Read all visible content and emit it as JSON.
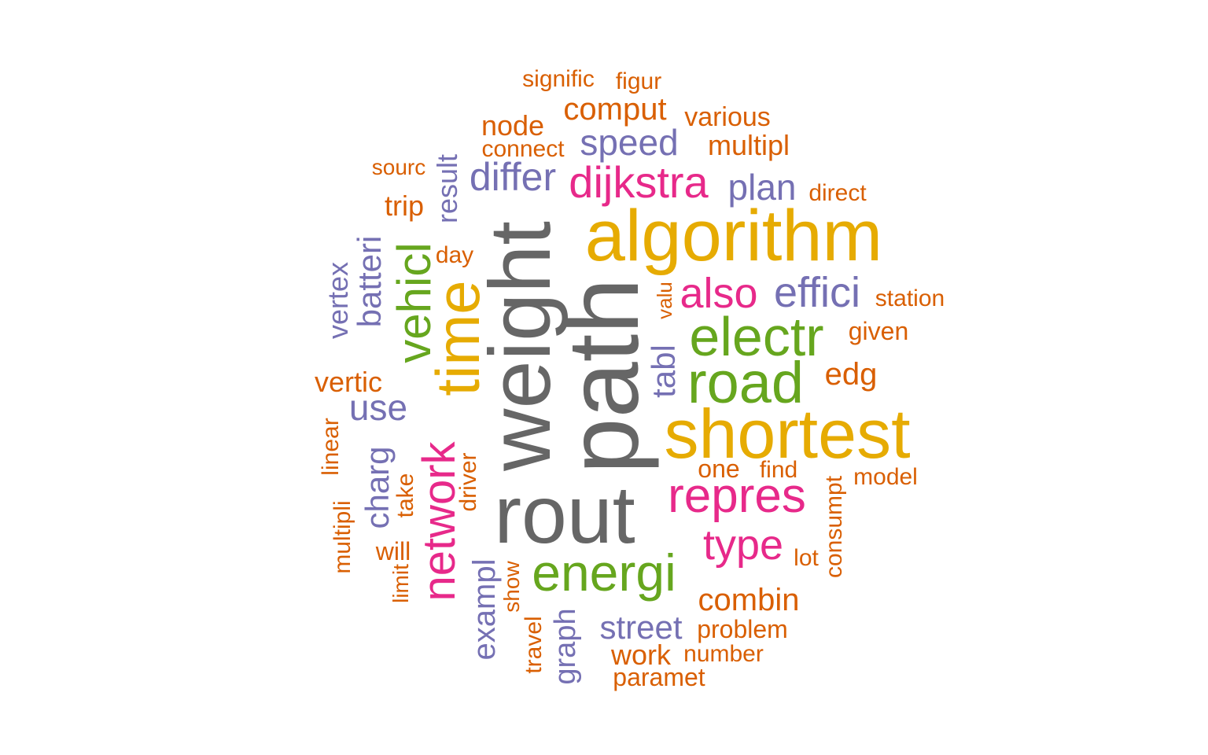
{
  "palette": {
    "gray": "#666666",
    "gold": "#E6AB02",
    "green": "#66A61E",
    "pink": "#E7298A",
    "purple": "#7570B3",
    "orange": "#D95F02"
  },
  "words": [
    {
      "text": "weight",
      "color": "gray",
      "rotated": true
    },
    {
      "text": "path",
      "color": "gray",
      "rotated": true
    },
    {
      "text": "rout",
      "color": "gray",
      "rotated": false
    },
    {
      "text": "algorithm",
      "color": "gold",
      "rotated": false
    },
    {
      "text": "shortest",
      "color": "gold",
      "rotated": false
    },
    {
      "text": "time",
      "color": "gold",
      "rotated": true
    },
    {
      "text": "road",
      "color": "green",
      "rotated": false
    },
    {
      "text": "electr",
      "color": "green",
      "rotated": false
    },
    {
      "text": "energi",
      "color": "green",
      "rotated": false
    },
    {
      "text": "vehicl",
      "color": "green",
      "rotated": true
    },
    {
      "text": "repres",
      "color": "pink",
      "rotated": false
    },
    {
      "text": "dijkstra",
      "color": "pink",
      "rotated": false
    },
    {
      "text": "network",
      "color": "pink",
      "rotated": true
    },
    {
      "text": "also",
      "color": "pink",
      "rotated": false
    },
    {
      "text": "type",
      "color": "pink",
      "rotated": false
    },
    {
      "text": "effici",
      "color": "purple",
      "rotated": false
    },
    {
      "text": "differ",
      "color": "purple",
      "rotated": false
    },
    {
      "text": "speed",
      "color": "purple",
      "rotated": false
    },
    {
      "text": "plan",
      "color": "purple",
      "rotated": false
    },
    {
      "text": "use",
      "color": "purple",
      "rotated": false
    },
    {
      "text": "street",
      "color": "purple",
      "rotated": false
    },
    {
      "text": "batteri",
      "color": "purple",
      "rotated": true
    },
    {
      "text": "charg",
      "color": "purple",
      "rotated": true
    },
    {
      "text": "tabl",
      "color": "purple",
      "rotated": true
    },
    {
      "text": "exampl",
      "color": "purple",
      "rotated": true
    },
    {
      "text": "vertex",
      "color": "purple",
      "rotated": true
    },
    {
      "text": "graph",
      "color": "purple",
      "rotated": true
    },
    {
      "text": "result",
      "color": "purple",
      "rotated": true
    },
    {
      "text": "comput",
      "color": "orange",
      "rotated": false
    },
    {
      "text": "node",
      "color": "orange",
      "rotated": false
    },
    {
      "text": "combin",
      "color": "orange",
      "rotated": false
    },
    {
      "text": "edg",
      "color": "orange",
      "rotated": false
    },
    {
      "text": "multipl",
      "color": "orange",
      "rotated": false
    },
    {
      "text": "vertic",
      "color": "orange",
      "rotated": false
    },
    {
      "text": "work",
      "color": "orange",
      "rotated": false
    },
    {
      "text": "various",
      "color": "orange",
      "rotated": false
    },
    {
      "text": "problem",
      "color": "orange",
      "rotated": false
    },
    {
      "text": "given",
      "color": "orange",
      "rotated": false
    },
    {
      "text": "trip",
      "color": "orange",
      "rotated": false
    },
    {
      "text": "one",
      "color": "orange",
      "rotated": false
    },
    {
      "text": "will",
      "color": "orange",
      "rotated": false
    },
    {
      "text": "paramet",
      "color": "orange",
      "rotated": false
    },
    {
      "text": "day",
      "color": "orange",
      "rotated": false
    },
    {
      "text": "connect",
      "color": "orange",
      "rotated": false
    },
    {
      "text": "signific",
      "color": "orange",
      "rotated": false
    },
    {
      "text": "figur",
      "color": "orange",
      "rotated": false
    },
    {
      "text": "station",
      "color": "orange",
      "rotated": false
    },
    {
      "text": "direct",
      "color": "orange",
      "rotated": false
    },
    {
      "text": "sourc",
      "color": "orange",
      "rotated": false
    },
    {
      "text": "find",
      "color": "orange",
      "rotated": false
    },
    {
      "text": "model",
      "color": "orange",
      "rotated": false
    },
    {
      "text": "lot",
      "color": "orange",
      "rotated": false
    },
    {
      "text": "number",
      "color": "orange",
      "rotated": false
    },
    {
      "text": "linear",
      "color": "orange",
      "rotated": true
    },
    {
      "text": "multipli",
      "color": "orange",
      "rotated": true
    },
    {
      "text": "take",
      "color": "orange",
      "rotated": true
    },
    {
      "text": "driver",
      "color": "orange",
      "rotated": true
    },
    {
      "text": "limit",
      "color": "orange",
      "rotated": true
    },
    {
      "text": "show",
      "color": "orange",
      "rotated": true
    },
    {
      "text": "travel",
      "color": "orange",
      "rotated": true
    },
    {
      "text": "consumpt",
      "color": "orange",
      "rotated": true
    },
    {
      "text": "valu",
      "color": "orange",
      "rotated": true
    }
  ]
}
